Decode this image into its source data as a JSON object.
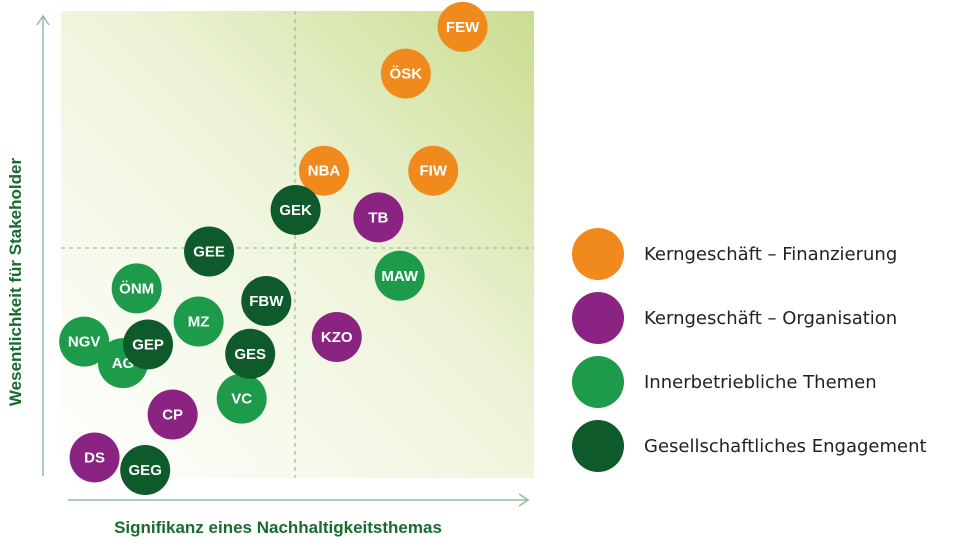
{
  "chart_data": {
    "type": "scatter",
    "xlabel": "Signifikanz eines Nachhaltigkeitsthemas",
    "ylabel": "Wesentlichkeit für Stakeholder",
    "xlim": [
      0,
      100
    ],
    "ylim": [
      0,
      100
    ],
    "grid": false,
    "quadrant_lines": {
      "x": 50,
      "y": 50
    },
    "legend_position": "right",
    "categories": [
      {
        "id": "fin",
        "label": "Kerngeschäft – Finanzierung",
        "color": "#F08A1C"
      },
      {
        "id": "org",
        "label": "Kerngeschäft – Organisation",
        "color": "#8B2383"
      },
      {
        "id": "inn",
        "label": "Innerbetriebliche Themen",
        "color": "#1E9A4B"
      },
      {
        "id": "ges",
        "label": "Gesellschaftliches Engagement",
        "color": "#0E5A2A"
      }
    ],
    "points": [
      {
        "label": "FEW",
        "category": "fin",
        "x": 84.9,
        "y": 96.6
      },
      {
        "label": "ÖSK",
        "category": "fin",
        "x": 72.9,
        "y": 86.6
      },
      {
        "label": "NBA",
        "category": "fin",
        "x": 55.6,
        "y": 65.8
      },
      {
        "label": "FIW",
        "category": "fin",
        "x": 78.7,
        "y": 65.8
      },
      {
        "label": "TB",
        "category": "org",
        "x": 67.1,
        "y": 55.8
      },
      {
        "label": "KZO",
        "category": "org",
        "x": 58.3,
        "y": 30.2
      },
      {
        "label": "CP",
        "category": "org",
        "x": 23.6,
        "y": 13.6
      },
      {
        "label": "DS",
        "category": "org",
        "x": 7.1,
        "y": 4.4
      },
      {
        "label": "MAW",
        "category": "inn",
        "x": 71.6,
        "y": 43.3
      },
      {
        "label": "ÖNM",
        "category": "inn",
        "x": 16.0,
        "y": 40.6
      },
      {
        "label": "MZ",
        "category": "inn",
        "x": 29.1,
        "y": 33.5
      },
      {
        "label": "NGV",
        "category": "inn",
        "x": 4.9,
        "y": 29.2
      },
      {
        "label": "AG",
        "category": "inn",
        "x": 13.1,
        "y": 24.6
      },
      {
        "label": "VC",
        "category": "inn",
        "x": 38.2,
        "y": 17.0
      },
      {
        "label": "GEK",
        "category": "ges",
        "x": 49.6,
        "y": 57.4
      },
      {
        "label": "GEE",
        "category": "ges",
        "x": 31.3,
        "y": 48.5
      },
      {
        "label": "FBW",
        "category": "ges",
        "x": 43.4,
        "y": 37.9
      },
      {
        "label": "GEP",
        "category": "ges",
        "x": 18.4,
        "y": 28.6
      },
      {
        "label": "GES",
        "category": "ges",
        "x": 40.0,
        "y": 26.6
      },
      {
        "label": "GEG",
        "category": "ges",
        "x": 17.8,
        "y": 1.7
      }
    ]
  }
}
